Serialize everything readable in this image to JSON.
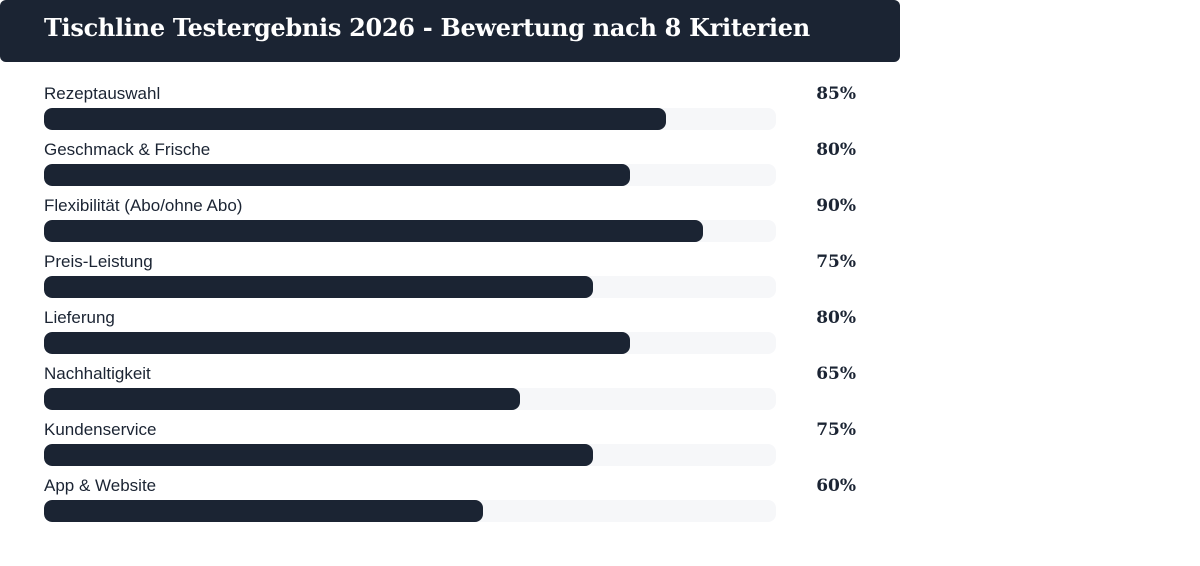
{
  "chart_data": {
    "type": "bar",
    "orientation": "horizontal",
    "title": "Tischline Testergebnis 2026 - Bewertung nach 8 Kriterien",
    "xlim": [
      0,
      100
    ],
    "grid": false,
    "colors": {
      "bar": "#1b2433",
      "track": "#f6f7f9",
      "header_bg": "#1b2433"
    },
    "items": [
      {
        "label": "Rezeptauswahl",
        "value": 85,
        "display": "85%"
      },
      {
        "label": "Geschmack & Frische",
        "value": 80,
        "display": "80%"
      },
      {
        "label": "Flexibilität (Abo/ohne Abo)",
        "value": 90,
        "display": "90%"
      },
      {
        "label": "Preis-Leistung",
        "value": 75,
        "display": "75%"
      },
      {
        "label": "Lieferung",
        "value": 80,
        "display": "80%"
      },
      {
        "label": "Nachhaltigkeit",
        "value": 65,
        "display": "65%"
      },
      {
        "label": "Kundenservice",
        "value": 75,
        "display": "75%"
      },
      {
        "label": "App & Website",
        "value": 60,
        "display": "60%"
      }
    ]
  }
}
